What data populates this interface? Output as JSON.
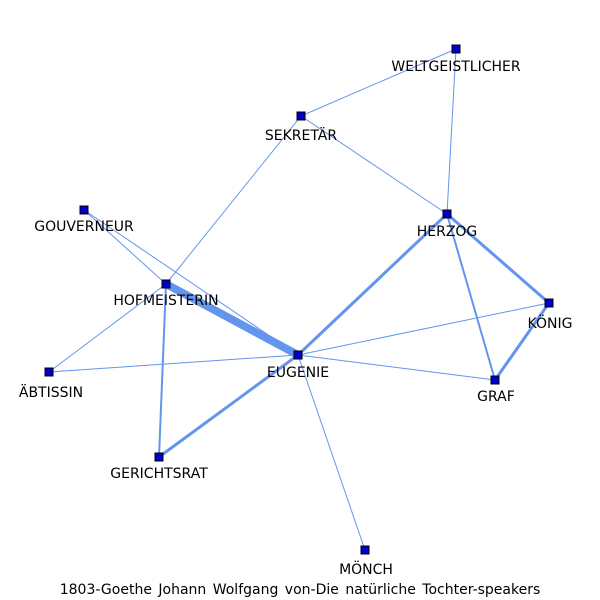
{
  "caption": "1803-Goethe Johann Wolfgang von-Die natürliche Tochter-speakers",
  "colors": {
    "edge": "#6495ed",
    "node_fill": "#0000cd",
    "node_stroke": "#000000"
  },
  "graph": {
    "nodes": [
      {
        "id": "WELTGEISTLICHER",
        "label": "WELTGEISTLICHER"
      },
      {
        "id": "SEKRETAR",
        "label": "SEKRETÄR"
      },
      {
        "id": "GOUVERNEUR",
        "label": "GOUVERNEUR"
      },
      {
        "id": "HERZOG",
        "label": "HERZOG"
      },
      {
        "id": "HOFMEISTERIN",
        "label": "HOFMEISTERIN"
      },
      {
        "id": "KONIG",
        "label": "KÖNIG"
      },
      {
        "id": "ABTISSIN",
        "label": "ÄBTISSIN"
      },
      {
        "id": "EUGENIE",
        "label": "EUGENIE"
      },
      {
        "id": "GRAF",
        "label": "GRAF"
      },
      {
        "id": "GERICHTSRAT",
        "label": "GERICHTSRAT"
      },
      {
        "id": "MONCH",
        "label": "MÖNCH"
      }
    ],
    "edges": [
      {
        "source": "WELTGEISTLICHER",
        "target": "SEKRETAR",
        "weight": 1
      },
      {
        "source": "WELTGEISTLICHER",
        "target": "HERZOG",
        "weight": 1
      },
      {
        "source": "SEKRETAR",
        "target": "HERZOG",
        "weight": 1
      },
      {
        "source": "SEKRETAR",
        "target": "HOFMEISTERIN",
        "weight": 1
      },
      {
        "source": "GOUVERNEUR",
        "target": "HOFMEISTERIN",
        "weight": 1
      },
      {
        "source": "GOUVERNEUR",
        "target": "EUGENIE",
        "weight": 1
      },
      {
        "source": "HOFMEISTERIN",
        "target": "EUGENIE",
        "weight": 8
      },
      {
        "source": "HOFMEISTERIN",
        "target": "ABTISSIN",
        "weight": 1
      },
      {
        "source": "HOFMEISTERIN",
        "target": "GERICHTSRAT",
        "weight": 2
      },
      {
        "source": "HERZOG",
        "target": "EUGENIE",
        "weight": 3
      },
      {
        "source": "HERZOG",
        "target": "KONIG",
        "weight": 3
      },
      {
        "source": "HERZOG",
        "target": "GRAF",
        "weight": 2
      },
      {
        "source": "KONIG",
        "target": "GRAF",
        "weight": 3
      },
      {
        "source": "KONIG",
        "target": "EUGENIE",
        "weight": 1
      },
      {
        "source": "EUGENIE",
        "target": "GRAF",
        "weight": 1
      },
      {
        "source": "EUGENIE",
        "target": "ABTISSIN",
        "weight": 1
      },
      {
        "source": "EUGENIE",
        "target": "GERICHTSRAT",
        "weight": 3
      },
      {
        "source": "EUGENIE",
        "target": "MONCH",
        "weight": 1
      }
    ]
  }
}
